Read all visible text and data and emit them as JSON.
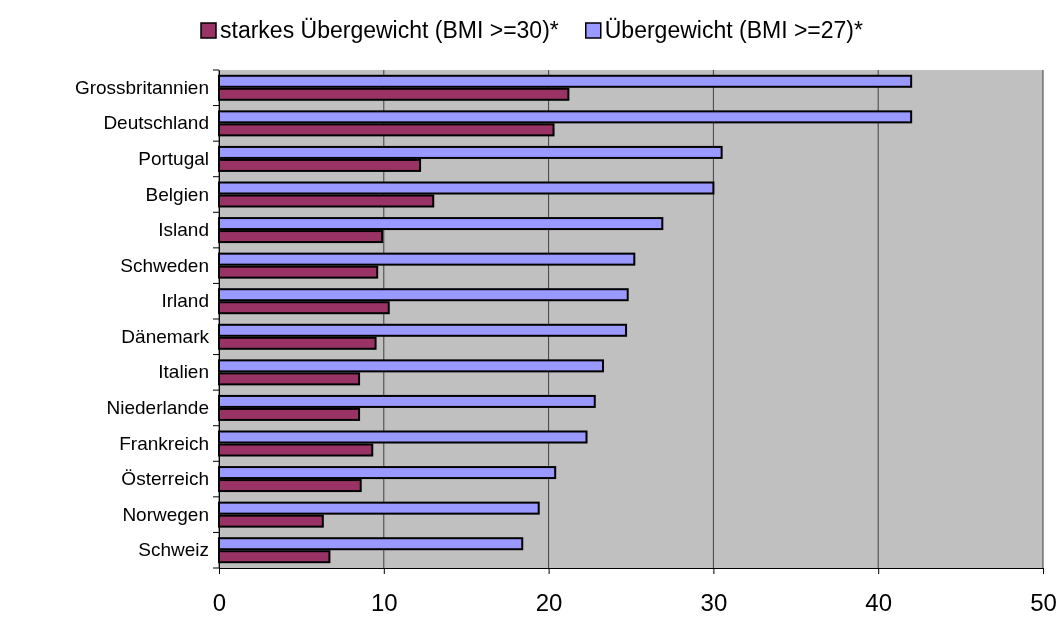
{
  "chart_data": {
    "type": "bar",
    "orientation": "horizontal",
    "categories": [
      "Grossbritannien",
      "Deutschland",
      "Portugal",
      "Belgien",
      "Island",
      "Schweden",
      "Irland",
      "Dänemark",
      "Italien",
      "Niederlande",
      "Frankreich",
      "Österreich",
      "Norwegen",
      "Schweiz"
    ],
    "series": [
      {
        "name": "starkes Übergewicht (BMI >=30)*",
        "color": "#993366",
        "values": [
          21.2,
          20.3,
          12.2,
          13,
          9.9,
          9.6,
          10.3,
          9.5,
          8.5,
          8.5,
          9.3,
          8.6,
          6.3,
          6.7
        ]
      },
      {
        "name": "Übergewicht (BMI >=27)*",
        "color": "#9999ff",
        "values": [
          42,
          42,
          30.5,
          30,
          26.9,
          25.2,
          24.8,
          24.7,
          23.3,
          22.8,
          22.3,
          20.4,
          19.4,
          18.4
        ]
      }
    ],
    "xlim": [
      0,
      50
    ],
    "xticks": [
      0,
      10,
      20,
      30,
      40,
      50
    ],
    "grid": "x",
    "legend": "top"
  }
}
